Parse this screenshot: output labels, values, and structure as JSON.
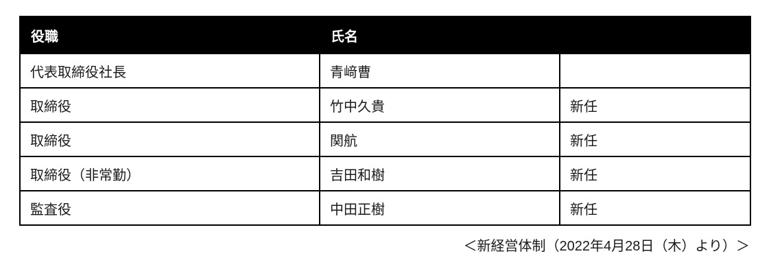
{
  "table": {
    "columns": [
      {
        "label": "役職"
      },
      {
        "label": "氏名"
      },
      {
        "label": ""
      }
    ],
    "rows": [
      {
        "position": "代表取締役社長",
        "name": "青﨑曹",
        "note": ""
      },
      {
        "position": "取締役",
        "name": "竹中久貴",
        "note": "新任"
      },
      {
        "position": "取締役",
        "name": "関航",
        "note": "新任"
      },
      {
        "position": "取締役（非常勤）",
        "name": "吉田和樹",
        "note": "新任"
      },
      {
        "position": "監査役",
        "name": "中田正樹",
        "note": "新任"
      }
    ]
  },
  "caption": "＜新経営体制（2022年4月28日（木）より）＞",
  "colors": {
    "header_bg": "#000000",
    "header_text": "#ffffff",
    "body_text": "#1a1a1a",
    "border": "#000000",
    "page_bg": "#ffffff"
  }
}
